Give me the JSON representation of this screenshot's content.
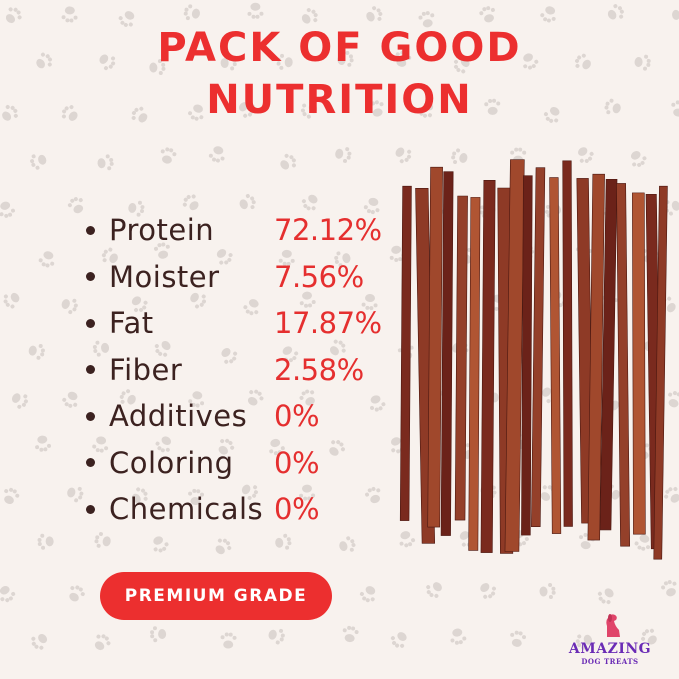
{
  "title_line1": "PACK OF GOOD",
  "title_line2": "NUTRITION",
  "nutrition": [
    {
      "label": "Protein",
      "value": "72.12%"
    },
    {
      "label": "Moister",
      "value": "7.56%"
    },
    {
      "label": "Fat",
      "value": "17.87%"
    },
    {
      "label": "Fiber",
      "value": "2.58%"
    },
    {
      "label": "Additives",
      "value": "0%"
    },
    {
      "label": "Coloring",
      "value": "0%"
    },
    {
      "label": "Chemicals",
      "value": "0%"
    }
  ],
  "badge": "PREMIUM GRADE",
  "logo": {
    "line1": "AMAZING",
    "line2": "DOG TREATS"
  },
  "colors": {
    "accent": "#ec2f2f",
    "text": "#3c2220",
    "background": "#f8f2ee",
    "logo": "#6a2bb5"
  }
}
